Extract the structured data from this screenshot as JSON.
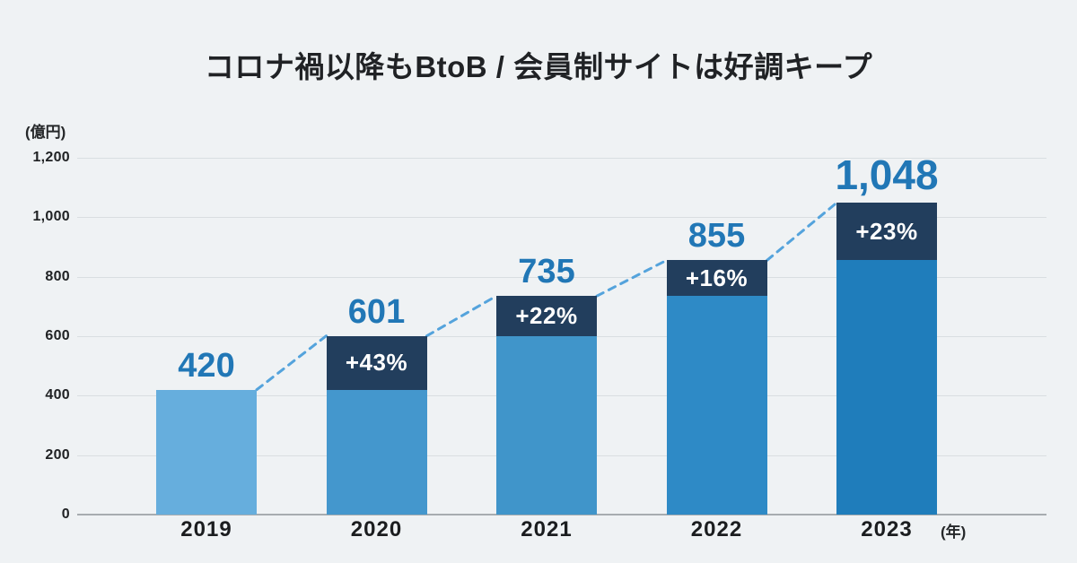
{
  "chart_data": {
    "type": "bar",
    "stacked": true,
    "title": "コロナ禍以降もBtoB / 会員制サイトは好調キープ",
    "y_axis_unit": "(億円)",
    "x_axis_unit": "(年)",
    "categories": [
      "2019",
      "2020",
      "2021",
      "2022",
      "2023"
    ],
    "values": [
      420,
      601,
      735,
      855,
      1048
    ],
    "value_labels": [
      "420",
      "601",
      "735",
      "855",
      "1,048"
    ],
    "growth_labels": [
      "",
      "+43%",
      "+22%",
      "+16%",
      "+23%"
    ],
    "y_ticks": [
      {
        "value": 0,
        "label": "0"
      },
      {
        "value": 200,
        "label": "200"
      },
      {
        "value": 400,
        "label": "400"
      },
      {
        "value": 600,
        "label": "600"
      },
      {
        "value": 800,
        "label": "800"
      },
      {
        "value": 1000,
        "label": "1,000"
      },
      {
        "value": 1200,
        "label": "1,200"
      }
    ],
    "ylim": [
      0,
      1200
    ],
    "grid": true,
    "legend": "none",
    "connector_style": "dashed",
    "segment_meaning": {
      "base_segment": "previous year value",
      "dark_segment": "year-over-year increase"
    }
  },
  "colors": {
    "background": "#eff2f4",
    "bar_colors": [
      "#66aedd",
      "#4497cd",
      "#4095ca",
      "#2e8ac6",
      "#1f7dbb"
    ],
    "increase_segment": "#223e5d",
    "value_label": "#2177b6",
    "growth_text": "#ffffff",
    "connector": "#54a3dc",
    "gridline": "#d9dee1",
    "baseline": "#a7acb0",
    "title_text": "#202225",
    "axis_text": "#1b1d1f"
  }
}
